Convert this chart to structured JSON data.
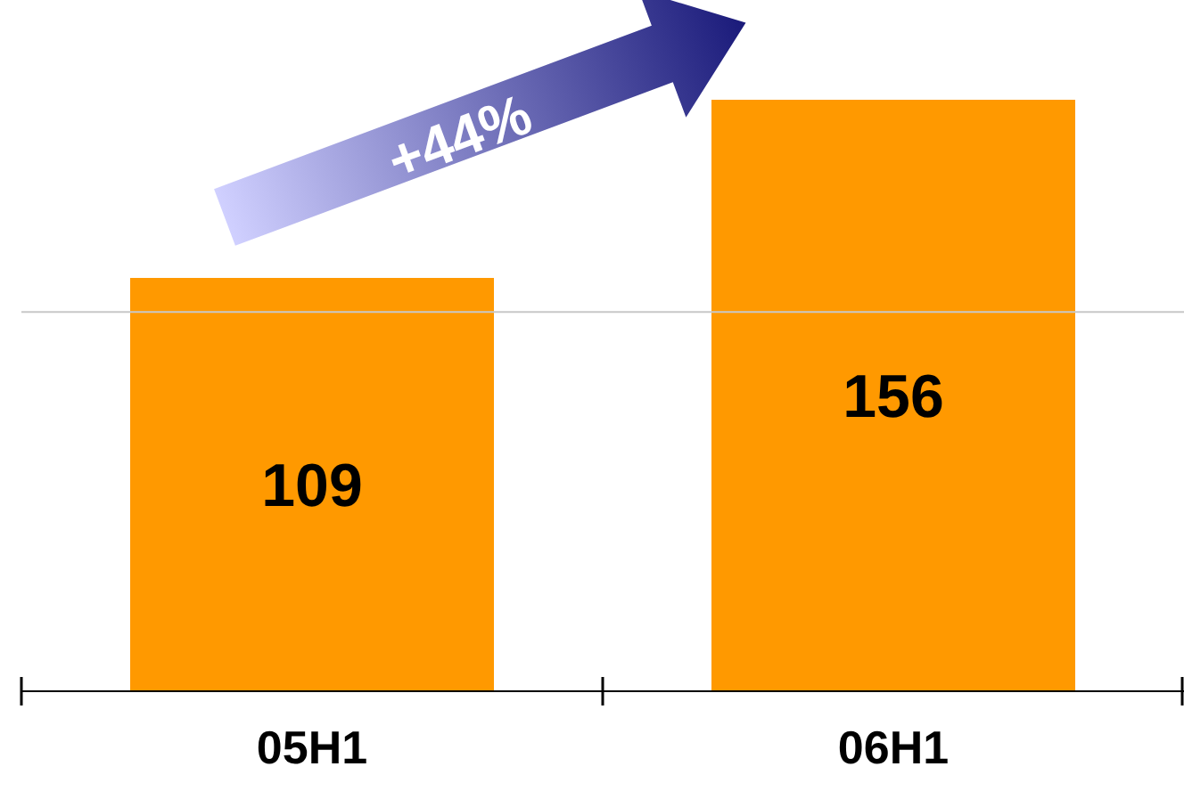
{
  "chart_data": {
    "type": "bar",
    "categories": [
      "05H1",
      "06H1"
    ],
    "values": [
      109,
      156
    ],
    "color": "#ff9900",
    "ref_lines": [
      {
        "axis": "y",
        "value": 100,
        "color": "#c8c8c8"
      }
    ],
    "tick_labels": "x",
    "data_labels": true,
    "annotations": [
      "+44%"
    ]
  }
}
